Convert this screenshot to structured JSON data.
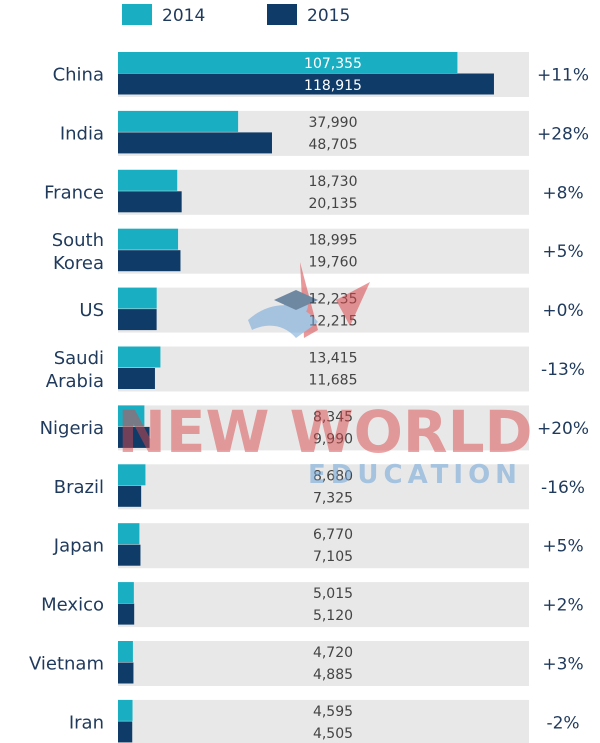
{
  "watermark": {
    "line1": "NEW WORLD",
    "line2": "EDUCATION"
  },
  "colors": {
    "series_2014": "#1aaec2",
    "series_2015": "#0e3b68",
    "track": "#e8e8e8",
    "text": "#1f3a5c",
    "value_text": "#444444",
    "watermark_red": "#d9474b",
    "watermark_blue": "#6fa4d6"
  },
  "chart_data": {
    "type": "bar",
    "orientation": "horizontal",
    "categories": [
      "China",
      "India",
      "France",
      "South Korea",
      "US",
      "Saudi Arabia",
      "Nigeria",
      "Brazil",
      "Japan",
      "Mexico",
      "Vietnam",
      "Iran"
    ],
    "category_lines": [
      [
        "China"
      ],
      [
        "India"
      ],
      [
        "France"
      ],
      [
        "South",
        "Korea"
      ],
      [
        "US"
      ],
      [
        "Saudi",
        "Arabia"
      ],
      [
        "Nigeria"
      ],
      [
        "Brazil"
      ],
      [
        "Japan"
      ],
      [
        "Mexico"
      ],
      [
        "Vietnam"
      ],
      [
        "Iran"
      ]
    ],
    "series": [
      {
        "name": "2014",
        "color": "#1aaec2",
        "values": [
          107355,
          37990,
          18730,
          18995,
          12235,
          13415,
          8345,
          8680,
          6770,
          5015,
          4720,
          4595
        ],
        "labels": [
          "107,355",
          "37,990",
          "18,730",
          "18,995",
          "12,235",
          "13,415",
          "8,345",
          "8,680",
          "6,770",
          "5,015",
          "4,720",
          "4,595"
        ]
      },
      {
        "name": "2015",
        "color": "#0e3b68",
        "values": [
          118915,
          48705,
          20135,
          19760,
          12215,
          11685,
          9990,
          7325,
          7105,
          5120,
          4885,
          4505
        ],
        "labels": [
          "118,915",
          "48,705",
          "20,135",
          "19,760",
          "12,215",
          "11,685",
          "9,990",
          "7,325",
          "7,105",
          "5,120",
          "4,885",
          "4,505"
        ]
      }
    ],
    "change": [
      "+11%",
      "+28%",
      "+8%",
      "+5%",
      "+0%",
      "-13%",
      "+20%",
      "-16%",
      "+5%",
      "+2%",
      "+3%",
      "-2%"
    ],
    "xlim": [
      0,
      130000
    ],
    "legend_placement": "top-left",
    "grid": false
  }
}
